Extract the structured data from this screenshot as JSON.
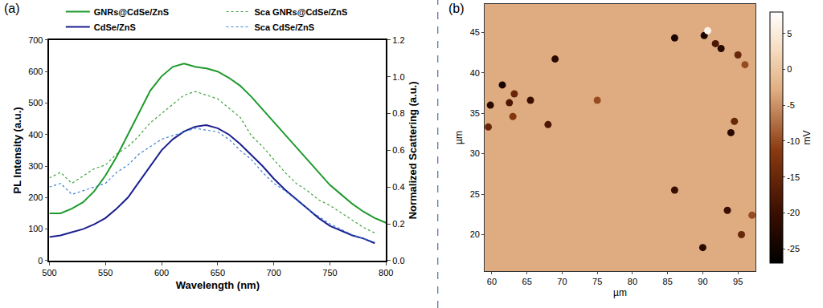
{
  "chart_data": [
    {
      "type": "line",
      "title": "(a)",
      "x_label": "Wavelength (nm)",
      "y_label": "PL Intensity (a.u.)",
      "y2_label": "Normalized Scattering (a.u.)",
      "x": [
        500,
        510,
        520,
        530,
        540,
        550,
        560,
        570,
        580,
        590,
        600,
        610,
        620,
        630,
        640,
        650,
        660,
        670,
        680,
        690,
        700,
        710,
        720,
        730,
        740,
        750,
        760,
        770,
        780,
        790,
        800
      ],
      "xlim": [
        500,
        800
      ],
      "xticks": [
        500,
        550,
        600,
        650,
        700,
        750,
        800
      ],
      "ylim": [
        0,
        700
      ],
      "yticks": [
        0,
        100,
        200,
        300,
        400,
        500,
        600,
        700
      ],
      "y2lim": [
        0,
        1.2
      ],
      "y2ticks": [
        {
          "value": 0,
          "label": "0.0"
        },
        0.2,
        0.4,
        0.6,
        0.8,
        {
          "value": 1,
          "label": "1.0"
        },
        1.2
      ],
      "grid": false,
      "legend": "top",
      "series": [
        {
          "name": "GNRs@CdSe/ZnS",
          "color": "#1e9a2c",
          "line_style": "solid",
          "axis": "y",
          "values": [
            150,
            150,
            165,
            185,
            220,
            270,
            330,
            400,
            470,
            540,
            585,
            615,
            625,
            615,
            610,
            600,
            580,
            555,
            520,
            480,
            440,
            400,
            360,
            320,
            280,
            240,
            210,
            180,
            155,
            135,
            120
          ]
        },
        {
          "name": "CdSe/ZnS",
          "color": "#1b1f8f",
          "line_style": "solid",
          "axis": "y",
          "values": [
            75,
            80,
            90,
            100,
            115,
            135,
            165,
            200,
            250,
            300,
            350,
            385,
            410,
            425,
            430,
            420,
            400,
            370,
            335,
            300,
            260,
            225,
            195,
            165,
            135,
            110,
            95,
            80,
            70,
            55,
            null
          ]
        },
        {
          "name": "Sca GNRs@CdSe/ZnS",
          "color": "#3aa53a",
          "line_style": "dotted",
          "axis": "y2",
          "values": [
            0.45,
            0.48,
            0.42,
            0.46,
            0.5,
            0.52,
            0.58,
            0.62,
            0.68,
            0.75,
            0.8,
            0.85,
            0.9,
            0.92,
            0.9,
            0.88,
            0.83,
            0.78,
            0.68,
            0.62,
            0.55,
            0.48,
            0.42,
            0.38,
            0.33,
            0.3,
            0.26,
            0.22,
            0.18,
            0.15,
            null
          ]
        },
        {
          "name": "Sca CdSe/ZnS",
          "color": "#3a80d6",
          "line_style": "dotted",
          "axis": "y2",
          "values": [
            0.4,
            0.42,
            0.36,
            0.38,
            0.4,
            0.42,
            0.48,
            0.52,
            0.58,
            0.62,
            0.66,
            0.68,
            0.7,
            0.72,
            0.71,
            0.7,
            0.66,
            0.6,
            0.55,
            0.48,
            0.42,
            0.38,
            0.33,
            0.28,
            0.24,
            0.2,
            0.17,
            0.14,
            0.12,
            0.1,
            null
          ]
        }
      ]
    },
    {
      "type": "heatmap",
      "title": "(b)",
      "x_label": "µm",
      "y_label": "µm",
      "xlim": [
        59,
        97.5
      ],
      "xticks": [
        60,
        65,
        70,
        75,
        80,
        85,
        90,
        95
      ],
      "ylim": [
        15.5,
        48.5
      ],
      "yticks": [
        20,
        25,
        30,
        35,
        40,
        45
      ],
      "background": -3,
      "spots": {
        "x": [
          59.8,
          59.5,
          61.5,
          62.5,
          63.2,
          65.5,
          68,
          69,
          75,
          86,
          86,
          90.2,
          90.7,
          91.8,
          92.6,
          95,
          96,
          94,
          94.5,
          93.5,
          90,
          95.5,
          97,
          63
        ],
        "y": [
          36,
          33.3,
          38.5,
          36.3,
          37.4,
          36.6,
          33.6,
          41.7,
          36.6,
          44.3,
          25.5,
          44.6,
          45.2,
          43.6,
          43,
          42.2,
          41,
          32.6,
          34,
          23,
          18.4,
          20,
          22.4,
          34.6
        ],
        "values": [
          -22,
          -15,
          -24,
          -18,
          -15,
          -20,
          -18,
          -22,
          -10,
          -24,
          -20,
          -24,
          6,
          -18,
          -22,
          -15,
          -10,
          -22,
          -15,
          -20,
          -22,
          -15,
          -10,
          -12
        ]
      },
      "colorbar": {
        "title": "mV",
        "range": [
          -27,
          8
        ],
        "ticks": [
          5,
          0,
          -5,
          -10,
          -15,
          -20,
          -25
        ]
      }
    }
  ]
}
